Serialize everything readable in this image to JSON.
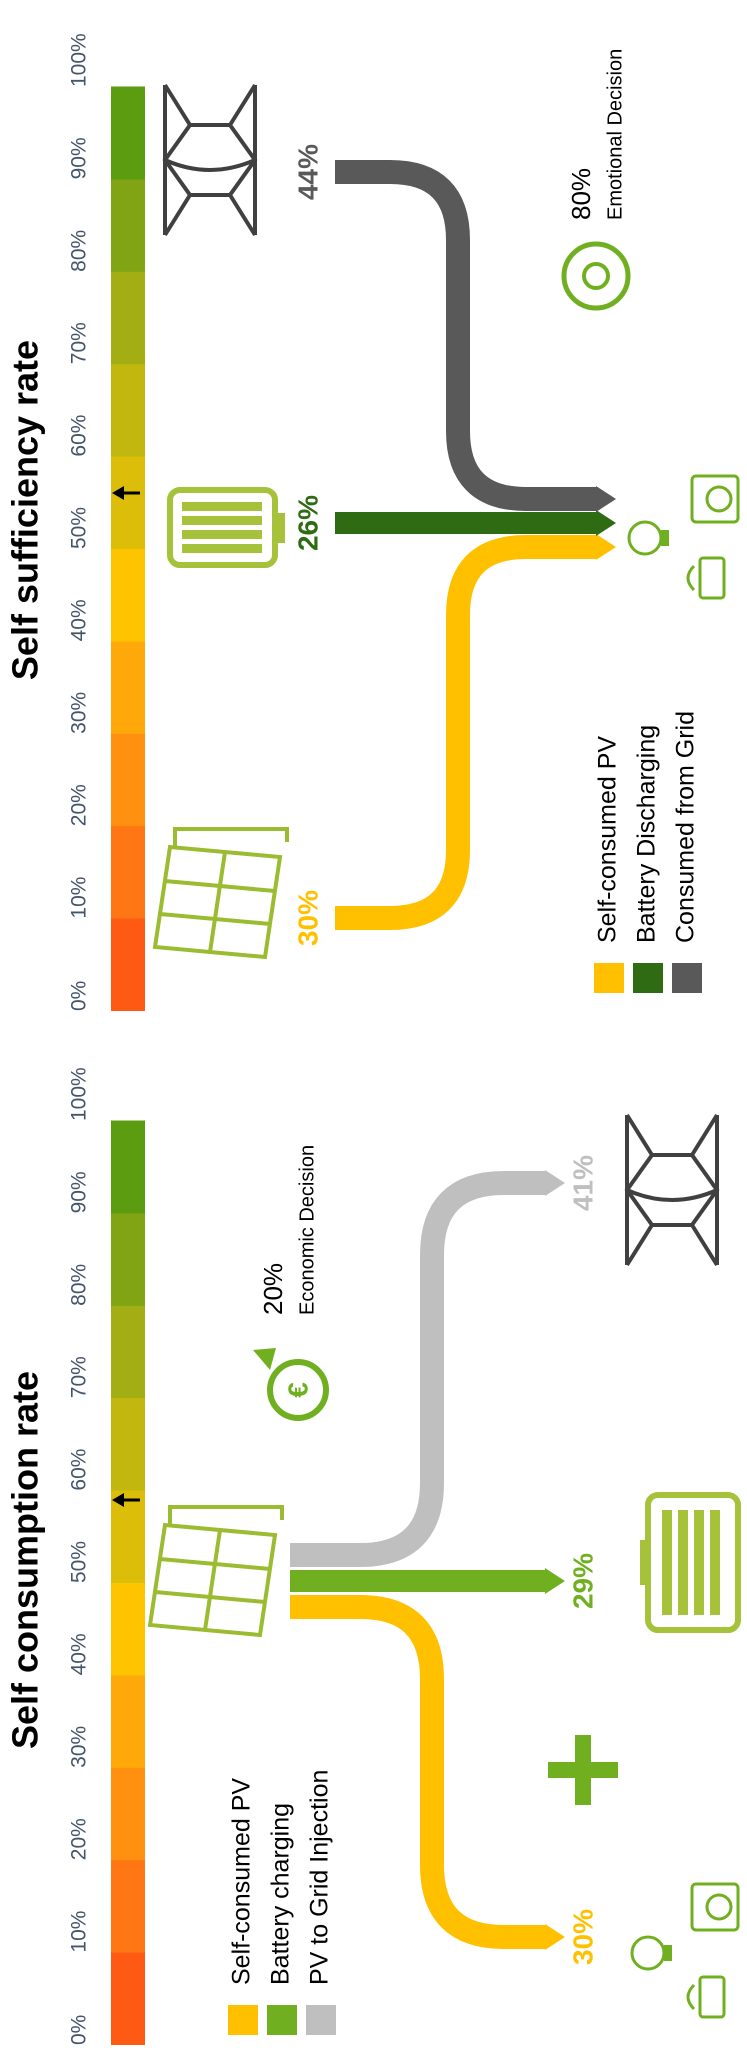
{
  "panels": [
    {
      "title": "Self consumption rate",
      "scale": [
        "0%",
        "10%",
        "20%",
        "30%",
        "40%",
        "50%",
        "60%",
        "70%",
        "80%",
        "90%",
        "100%"
      ],
      "legend": [
        "Self-consumed PV",
        "Battery charging",
        "PV to Grid Injection"
      ],
      "flows": [
        "30%",
        "29%",
        "41%"
      ],
      "decision": {
        "value": "20%",
        "label": "Economic Decision"
      }
    },
    {
      "title": "Self sufficiency rate",
      "scale": [
        "0%",
        "10%",
        "20%",
        "30%",
        "40%",
        "50%",
        "60%",
        "70%",
        "80%",
        "90%",
        "100%"
      ],
      "legend": [
        "Self-consumed PV",
        "Battery Discharging",
        "Consumed from Grid"
      ],
      "flows": [
        "30%",
        "26%",
        "44%"
      ],
      "decision": {
        "value": "80%",
        "label": "Emotional Decision"
      }
    }
  ]
}
